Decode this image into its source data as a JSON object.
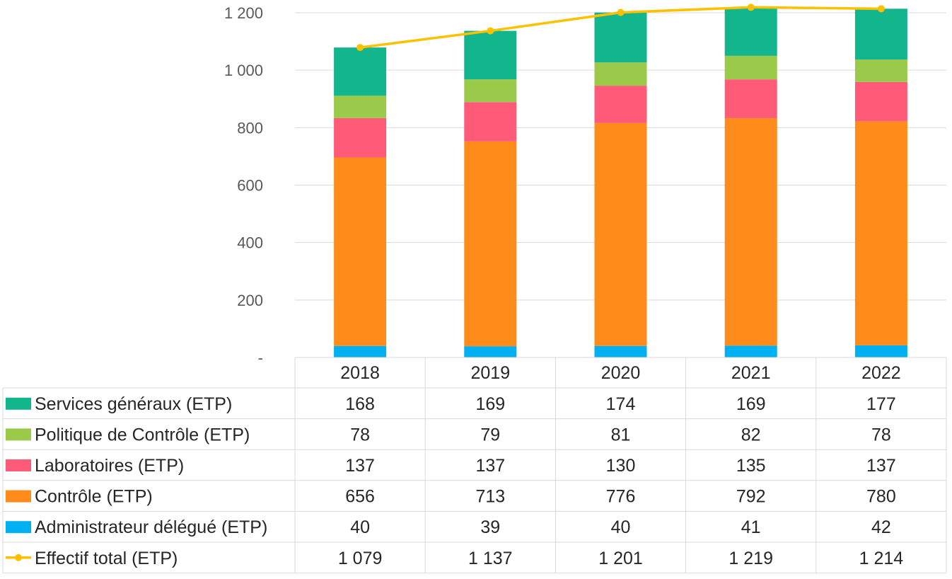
{
  "chart_data": {
    "type": "bar",
    "stacked": true,
    "categories": [
      "2018",
      "2019",
      "2020",
      "2021",
      "2022"
    ],
    "ylim": [
      0,
      1200
    ],
    "yticks": [
      0,
      200,
      400,
      600,
      800,
      1000,
      1200
    ],
    "ytick_labels": [
      "-",
      "200",
      "400",
      "600",
      "800",
      "1 000",
      "1 200"
    ],
    "grid": true,
    "series": [
      {
        "name": "Administrateur délégué (ETP)",
        "color": "#00b0f0",
        "values": [
          40,
          39,
          40,
          41,
          42
        ],
        "labels": [
          "40",
          "39",
          "40",
          "41",
          "42"
        ]
      },
      {
        "name": "Contrôle (ETP)",
        "color": "#ff8c1a",
        "values": [
          656,
          713,
          776,
          792,
          780
        ],
        "labels": [
          "656",
          "713",
          "776",
          "792",
          "780"
        ]
      },
      {
        "name": "Laboratoires (ETP)",
        "color": "#ff5a78",
        "values": [
          137,
          137,
          130,
          135,
          137
        ],
        "labels": [
          "137",
          "137",
          "130",
          "135",
          "137"
        ]
      },
      {
        "name": "Politique de Contrôle (ETP)",
        "color": "#9bc94a",
        "values": [
          78,
          79,
          81,
          82,
          78
        ],
        "labels": [
          "78",
          "79",
          "81",
          "82",
          "78"
        ]
      },
      {
        "name": "Services généraux (ETP)",
        "color": "#12b58c",
        "values": [
          168,
          169,
          174,
          169,
          177
        ],
        "labels": [
          "168",
          "169",
          "174",
          "169",
          "177"
        ]
      }
    ],
    "line_series": {
      "name": "Effectif total (ETP)",
      "color": "#ffc000",
      "values": [
        1079,
        1137,
        1201,
        1219,
        1214
      ],
      "labels": [
        "1 079",
        "1 137",
        "1 201",
        "1 219",
        "1 214"
      ]
    },
    "table_row_order": [
      "Services généraux (ETP)",
      "Politique de Contrôle (ETP)",
      "Laboratoires (ETP)",
      "Contrôle (ETP)",
      "Administrateur délégué (ETP)",
      "Effectif total (ETP)"
    ]
  }
}
